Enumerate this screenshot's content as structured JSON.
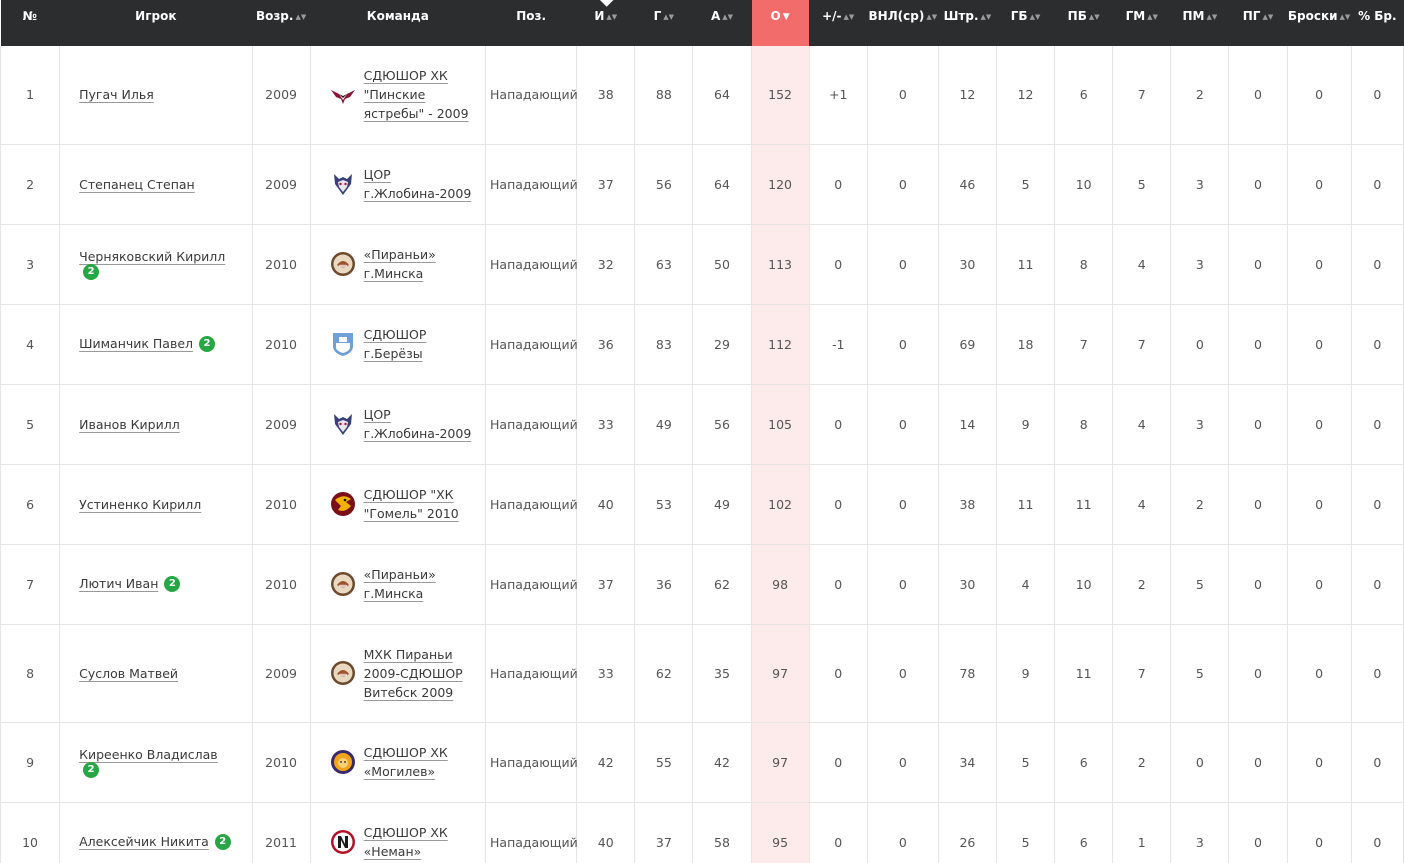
{
  "columns": [
    {
      "key": "num",
      "label": "№"
    },
    {
      "key": "player",
      "label": "Игрок"
    },
    {
      "key": "age",
      "label": "Возр."
    },
    {
      "key": "team",
      "label": "Команда"
    },
    {
      "key": "pos",
      "label": "Поз."
    },
    {
      "key": "gp",
      "label": "И"
    },
    {
      "key": "g",
      "label": "Г"
    },
    {
      "key": "a",
      "label": "А"
    },
    {
      "key": "pts",
      "label": "О"
    },
    {
      "key": "pm",
      "label": "+/-"
    },
    {
      "key": "toi",
      "label": "ВНЛ(ср)"
    },
    {
      "key": "pim",
      "label": "Штр."
    },
    {
      "key": "gb",
      "label": "ГБ"
    },
    {
      "key": "pb",
      "label": "ПБ"
    },
    {
      "key": "gm",
      "label": "ГМ"
    },
    {
      "key": "pmin",
      "label": "ПМ"
    },
    {
      "key": "pg",
      "label": "ПГ"
    },
    {
      "key": "shots",
      "label": "Броски"
    },
    {
      "key": "shpct",
      "label": "% Бр."
    }
  ],
  "sort_indicator_active": "▼",
  "sort_indicator": "▲▼",
  "rows": [
    {
      "num": "1",
      "player": "Пугач Илья",
      "badge": "",
      "age": "2009",
      "team": [
        "СДЮШОР ХК",
        "\"Пинские",
        "ястребы\" - 2009"
      ],
      "logo": "hawk-logo",
      "pos": "Нападающий",
      "gp": "38",
      "g": "88",
      "a": "64",
      "pts": "152",
      "pm": "+1",
      "toi": "0",
      "pim": "12",
      "gb": "12",
      "pb": "6",
      "gm": "7",
      "pmin": "2",
      "pg": "0",
      "shots": "0",
      "shpct": "0"
    },
    {
      "num": "2",
      "player": "Степанец Степан",
      "badge": "",
      "age": "2009",
      "team": [
        "ЦОР",
        "г.Жлобина-2009"
      ],
      "logo": "wolf-logo",
      "pos": "Нападающий",
      "gp": "37",
      "g": "56",
      "a": "64",
      "pts": "120",
      "pm": "0",
      "toi": "0",
      "pim": "46",
      "gb": "5",
      "pb": "10",
      "gm": "5",
      "pmin": "3",
      "pg": "0",
      "shots": "0",
      "shpct": "0"
    },
    {
      "num": "3",
      "player": "Черняковский Кирилл",
      "badge": "2",
      "age": "2010",
      "team": [
        "«Пираньи»",
        "г.Минска"
      ],
      "logo": "piranha-logo",
      "pos": "Нападающий",
      "gp": "32",
      "g": "63",
      "a": "50",
      "pts": "113",
      "pm": "0",
      "toi": "0",
      "pim": "30",
      "gb": "11",
      "pb": "8",
      "gm": "4",
      "pmin": "3",
      "pg": "0",
      "shots": "0",
      "shpct": "0"
    },
    {
      "num": "4",
      "player": "Шиманчик Павел",
      "badge": "2",
      "age": "2010",
      "team": [
        "СДЮШОР",
        "г.Берёзы"
      ],
      "logo": "shield-logo",
      "pos": "Нападающий",
      "gp": "36",
      "g": "83",
      "a": "29",
      "pts": "112",
      "pm": "-1",
      "toi": "0",
      "pim": "69",
      "gb": "18",
      "pb": "7",
      "gm": "7",
      "pmin": "0",
      "pg": "0",
      "shots": "0",
      "shpct": "0"
    },
    {
      "num": "5",
      "player": "Иванов Кирилл",
      "badge": "",
      "age": "2009",
      "team": [
        "ЦОР",
        "г.Жлобина-2009"
      ],
      "logo": "wolf-logo",
      "pos": "Нападающий",
      "gp": "33",
      "g": "49",
      "a": "56",
      "pts": "105",
      "pm": "0",
      "toi": "0",
      "pim": "14",
      "gb": "9",
      "pb": "8",
      "gm": "4",
      "pmin": "3",
      "pg": "0",
      "shots": "0",
      "shpct": "0"
    },
    {
      "num": "6",
      "player": "Устиненко Кирилл",
      "badge": "",
      "age": "2010",
      "team": [
        "СДЮШОР \"ХК",
        "\"Гомель\" 2010"
      ],
      "logo": "eagle-logo",
      "pos": "Нападающий",
      "gp": "40",
      "g": "53",
      "a": "49",
      "pts": "102",
      "pm": "0",
      "toi": "0",
      "pim": "38",
      "gb": "11",
      "pb": "11",
      "gm": "4",
      "pmin": "2",
      "pg": "0",
      "shots": "0",
      "shpct": "0"
    },
    {
      "num": "7",
      "player": "Лютич Иван",
      "badge": "2",
      "age": "2010",
      "team": [
        "«Пираньи»",
        "г.Минска"
      ],
      "logo": "piranha-logo",
      "pos": "Нападающий",
      "gp": "37",
      "g": "36",
      "a": "62",
      "pts": "98",
      "pm": "0",
      "toi": "0",
      "pim": "30",
      "gb": "4",
      "pb": "10",
      "gm": "2",
      "pmin": "5",
      "pg": "0",
      "shots": "0",
      "shpct": "0"
    },
    {
      "num": "8",
      "player": "Суслов Матвей",
      "badge": "",
      "age": "2009",
      "team": [
        "МХК Пираньи",
        "2009-СДЮШОР",
        "Витебск 2009"
      ],
      "logo": "piranha-logo",
      "pos": "Нападающий",
      "gp": "33",
      "g": "62",
      "a": "35",
      "pts": "97",
      "pm": "0",
      "toi": "0",
      "pim": "78",
      "gb": "9",
      "pb": "11",
      "gm": "7",
      "pmin": "5",
      "pg": "0",
      "shots": "0",
      "shpct": "0"
    },
    {
      "num": "9",
      "player": "Киреенко Владислав",
      "badge": "2",
      "age": "2010",
      "team": [
        "СДЮШОР ХК",
        "«Могилев»"
      ],
      "logo": "lion-logo",
      "pos": "Нападающий",
      "gp": "42",
      "g": "55",
      "a": "42",
      "pts": "97",
      "pm": "0",
      "toi": "0",
      "pim": "34",
      "gb": "5",
      "pb": "6",
      "gm": "2",
      "pmin": "0",
      "pg": "0",
      "shots": "0",
      "shpct": "0"
    },
    {
      "num": "10",
      "player": "Алексейчик Никита",
      "badge": "2",
      "age": "2011",
      "team": [
        "СДЮШОР ХК",
        "«Неман»"
      ],
      "logo": "neman-logo",
      "pos": "Нападающий",
      "gp": "40",
      "g": "37",
      "a": "58",
      "pts": "95",
      "pm": "0",
      "toi": "0",
      "pim": "26",
      "gb": "5",
      "pb": "6",
      "gm": "1",
      "pmin": "3",
      "pg": "0",
      "shots": "0",
      "shpct": "0"
    }
  ]
}
